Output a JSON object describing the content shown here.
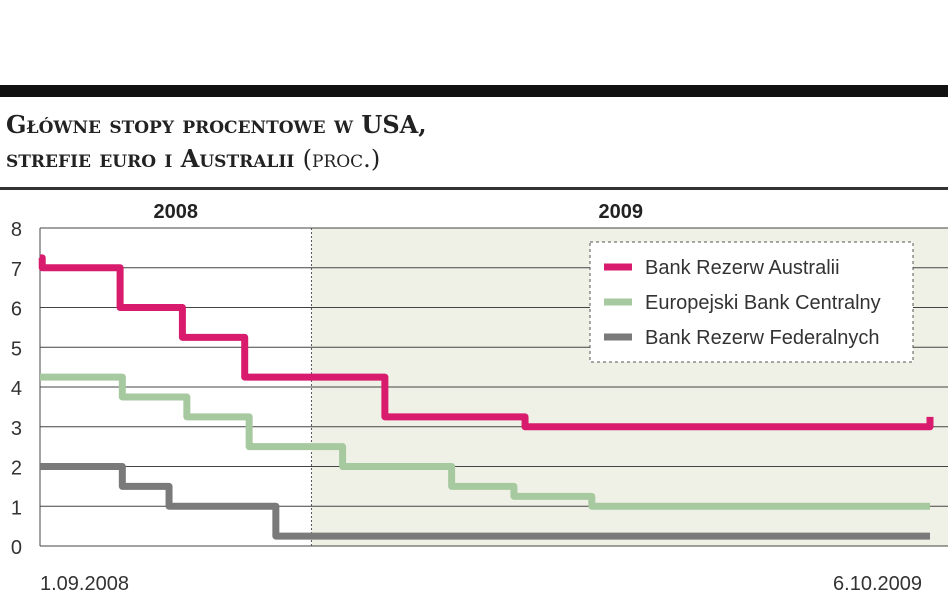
{
  "header": {
    "title_line1": "Główne stopy procentowe w USA,",
    "title_line2": "strefie euro i Australii",
    "unit": "(proc.)"
  },
  "chart_data": {
    "type": "line",
    "title": "Główne stopy procentowe w USA, strefie euro i Australii (proc.)",
    "ylim": [
      0,
      8
    ],
    "y_ticks": [
      "0",
      "1",
      "2",
      "3",
      "4",
      "5",
      "6",
      "7",
      "8"
    ],
    "x_start_label": "1.09.2008",
    "x_end_label": "6.10.2009",
    "x_start": "2008-09-01",
    "x_end": "2009-10-06",
    "year_labels": [
      "2008",
      "2009"
    ],
    "year_divider": "2009-01-01",
    "grid": true,
    "legend_position": "top-right",
    "colors": {
      "background_2009": "#f0f1e6",
      "grid": "#444444"
    },
    "series": [
      {
        "name": "Bank Rezerw Australii",
        "color": "#d81b6c",
        "points": [
          [
            "2008-09-01",
            7.25
          ],
          [
            "2008-09-02",
            7.0
          ],
          [
            "2008-10-07",
            6.0
          ],
          [
            "2008-11-04",
            5.25
          ],
          [
            "2008-12-02",
            4.25
          ],
          [
            "2009-02-03",
            3.25
          ],
          [
            "2009-04-07",
            3.0
          ],
          [
            "2009-10-05",
            3.0
          ],
          [
            "2009-10-06",
            3.25
          ]
        ]
      },
      {
        "name": "Europejski Bank Centralny",
        "color": "#a6c9a0",
        "points": [
          [
            "2008-09-01",
            4.25
          ],
          [
            "2008-10-08",
            3.75
          ],
          [
            "2008-11-06",
            3.25
          ],
          [
            "2008-12-04",
            2.5
          ],
          [
            "2009-01-15",
            2.0
          ],
          [
            "2009-03-05",
            1.5
          ],
          [
            "2009-04-02",
            1.25
          ],
          [
            "2009-05-07",
            1.0
          ],
          [
            "2009-10-06",
            1.0
          ]
        ]
      },
      {
        "name": "Bank Rezerw Federalnych",
        "color": "#7a7a7a",
        "points": [
          [
            "2008-09-01",
            2.0
          ],
          [
            "2008-10-08",
            1.5
          ],
          [
            "2008-10-29",
            1.0
          ],
          [
            "2008-12-16",
            0.25
          ],
          [
            "2009-10-06",
            0.25
          ]
        ]
      }
    ]
  }
}
